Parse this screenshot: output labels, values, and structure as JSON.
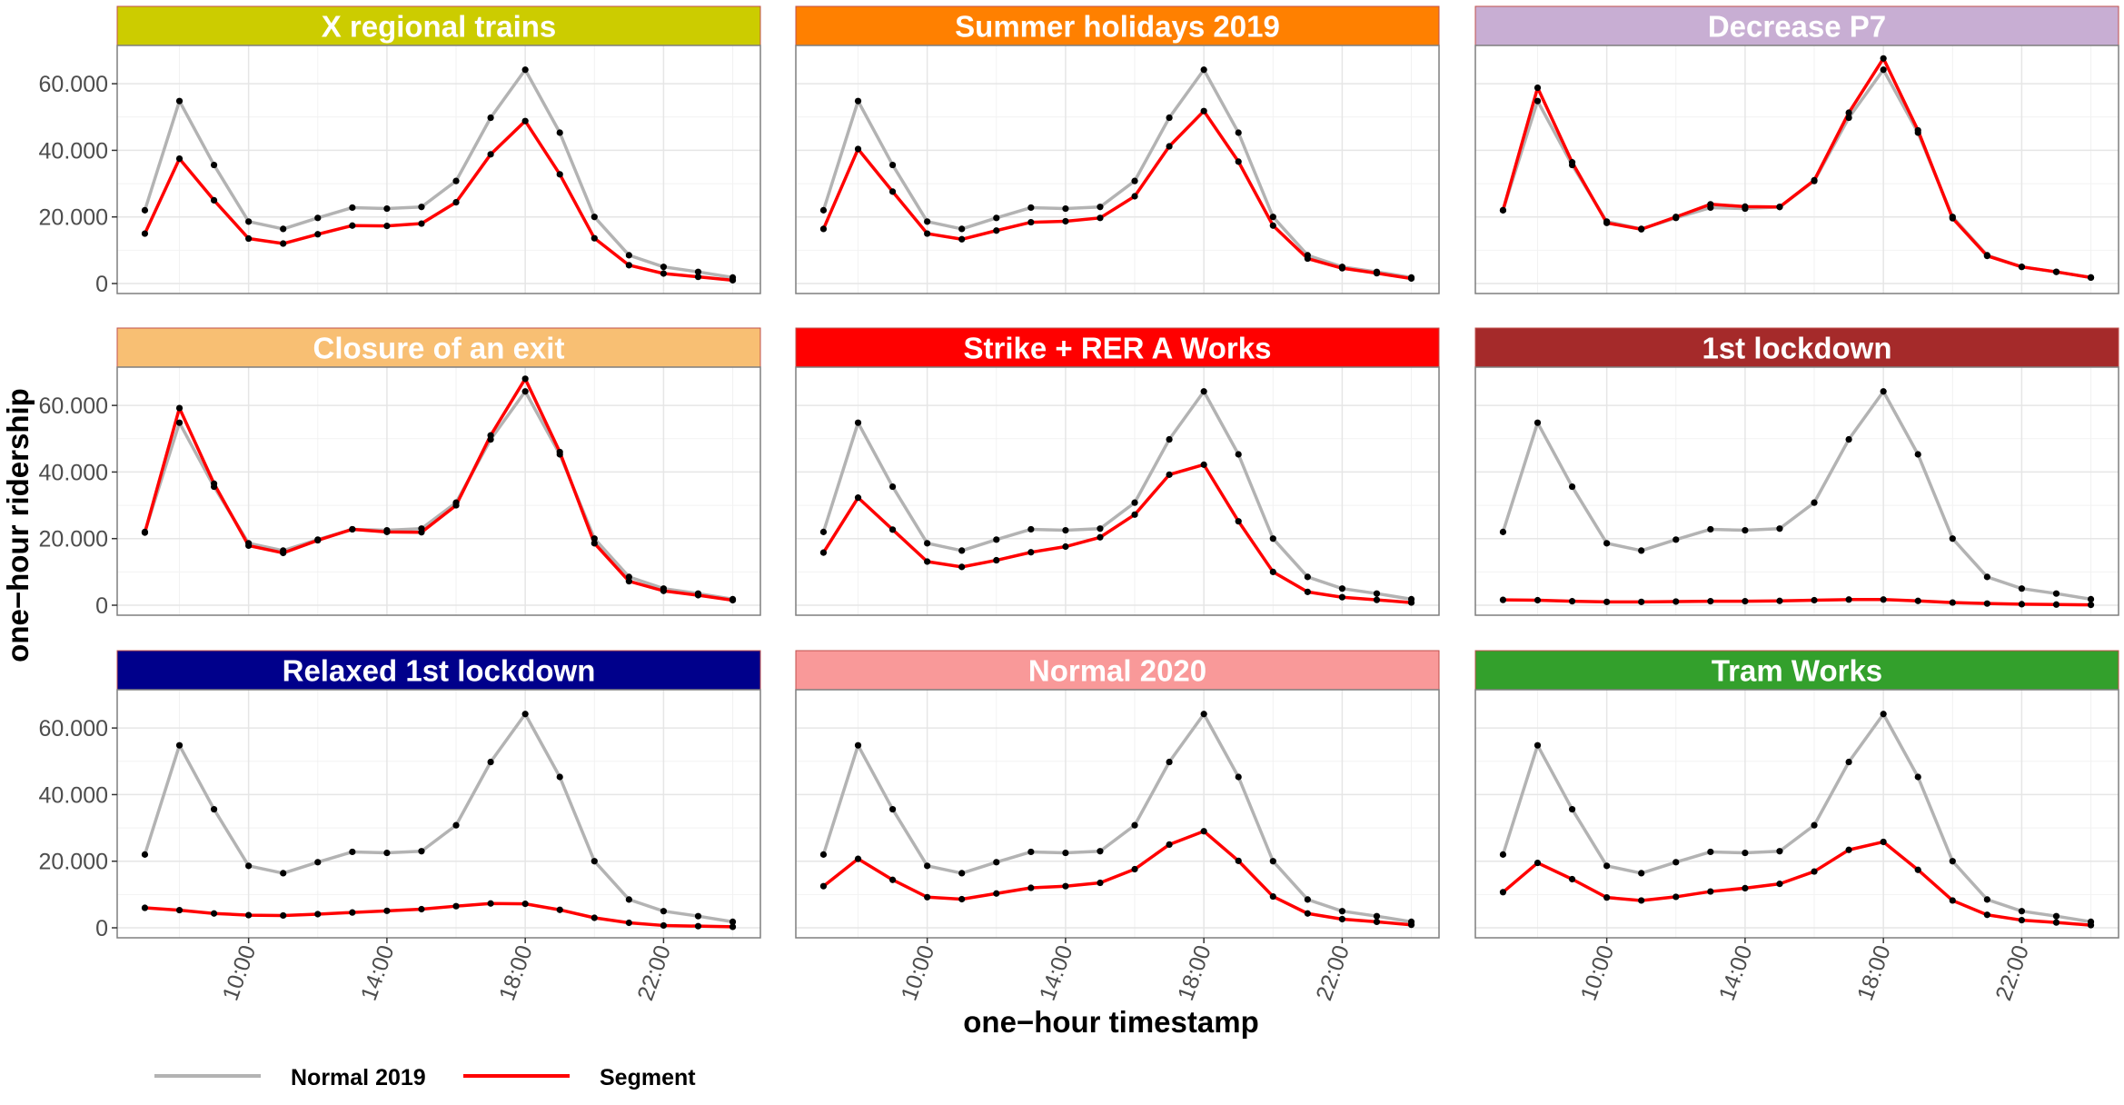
{
  "chart_data": {
    "type": "line",
    "facet_layout": "3x3",
    "xlabel": "one−hour timestamp",
    "ylabel": "one−hour ridership",
    "x": [
      7,
      8,
      9,
      10,
      11,
      12,
      13,
      14,
      15,
      16,
      17,
      18,
      19,
      20,
      21,
      22,
      23,
      24
    ],
    "x_ticks": [
      10,
      14,
      18,
      22
    ],
    "x_tick_labels": [
      "10:00",
      "14:00",
      "18:00",
      "22:00"
    ],
    "xlim": [
      6.2,
      24.8
    ],
    "ylim": [
      -3000,
      71500
    ],
    "y_ticks": [
      0,
      20000,
      40000,
      60000
    ],
    "y_tick_labels": [
      "0",
      "20.000",
      "40.000",
      "60.000"
    ],
    "grid": true,
    "legend_position": "bottom-left",
    "legend": [
      {
        "name": "Normal 2019",
        "color": "#b3b3b3"
      },
      {
        "name": "Segment",
        "color": "#ff0000"
      }
    ],
    "reference_series": {
      "name": "Normal 2019",
      "values": [
        22000,
        54800,
        35600,
        18600,
        16400,
        19700,
        22800,
        22500,
        23000,
        30800,
        49800,
        64200,
        45300,
        20000,
        8500,
        5000,
        3500,
        1800
      ]
    },
    "panels": [
      {
        "title": "X regional trains",
        "strip_color": "#cccc00",
        "values": [
          15000,
          37500,
          25000,
          13500,
          12000,
          14800,
          17400,
          17300,
          18000,
          24400,
          38800,
          48800,
          32800,
          13600,
          5500,
          3000,
          2000,
          1000
        ]
      },
      {
        "title": "Summer holidays 2019",
        "strip_color": "#ff8000",
        "values": [
          16400,
          40400,
          27600,
          15000,
          13300,
          15900,
          18400,
          18700,
          19700,
          26200,
          41200,
          51800,
          36600,
          17400,
          7500,
          4600,
          3100,
          1500
        ]
      },
      {
        "title": "Decrease P7",
        "strip_color": "#c8aed3",
        "values": [
          22000,
          58800,
          36400,
          18200,
          16300,
          20000,
          23800,
          23100,
          23000,
          31000,
          51300,
          67600,
          46000,
          19600,
          8300,
          5000,
          3500,
          1800
        ]
      },
      {
        "title": "Closure of an exit",
        "strip_color": "#f8bf73",
        "values": [
          21800,
          59200,
          36500,
          17900,
          15700,
          19500,
          22800,
          22000,
          21900,
          30000,
          51000,
          68000,
          46000,
          18600,
          7200,
          4300,
          3000,
          1500
        ]
      },
      {
        "title": "Strike + RER A Works",
        "strip_color": "#ff0000",
        "values": [
          15800,
          32300,
          22700,
          13100,
          11500,
          13500,
          15900,
          17600,
          20400,
          27200,
          39200,
          42200,
          25200,
          10000,
          4000,
          2400,
          1600,
          800
        ]
      },
      {
        "title": "1st lockdown",
        "strip_color": "#a52a2a",
        "values": [
          1600,
          1500,
          1200,
          1000,
          1000,
          1100,
          1200,
          1200,
          1300,
          1500,
          1700,
          1700,
          1300,
          800,
          500,
          300,
          200,
          100
        ]
      },
      {
        "title": "Relaxed 1st lockdown",
        "strip_color": "#00008b",
        "values": [
          6000,
          5300,
          4300,
          3800,
          3700,
          4100,
          4600,
          5100,
          5600,
          6500,
          7300,
          7200,
          5400,
          3000,
          1500,
          700,
          500,
          300
        ]
      },
      {
        "title": "Normal 2020",
        "strip_color": "#f99999",
        "values": [
          12500,
          20700,
          14400,
          9200,
          8600,
          10300,
          12000,
          12500,
          13500,
          17600,
          25000,
          29000,
          20100,
          9400,
          4300,
          2600,
          1800,
          900
        ]
      },
      {
        "title": "Tram Works",
        "strip_color": "#33a02c",
        "values": [
          10700,
          19500,
          14600,
          9100,
          8200,
          9300,
          10900,
          11900,
          13200,
          16900,
          23400,
          25800,
          17400,
          8200,
          3900,
          2300,
          1600,
          800
        ]
      }
    ]
  }
}
